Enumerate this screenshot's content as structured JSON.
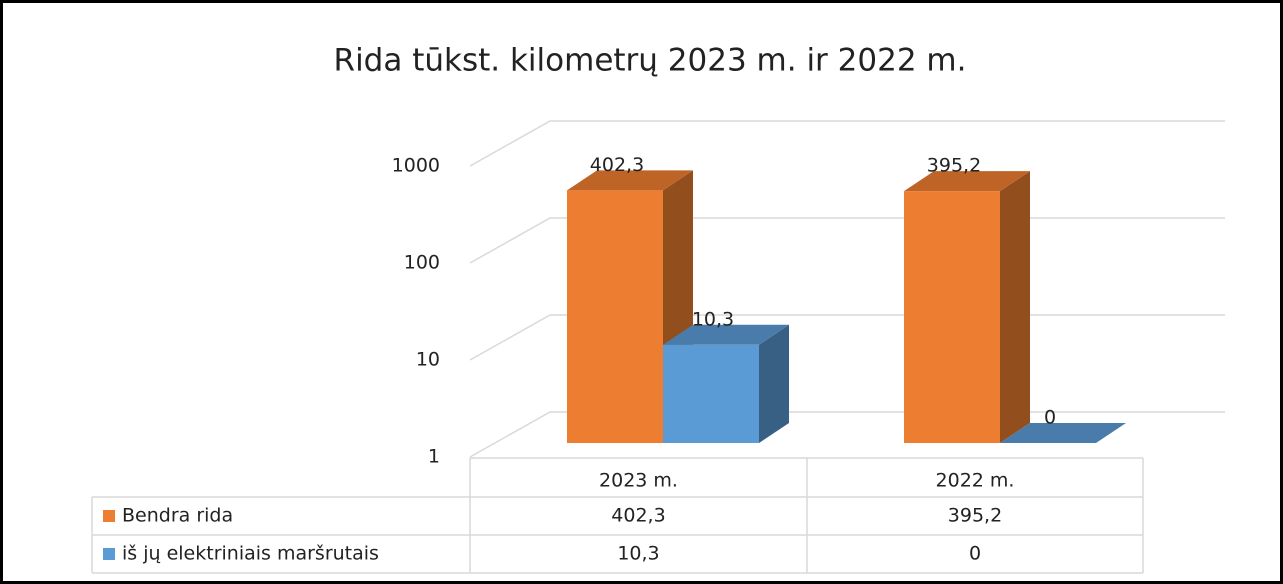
{
  "chart_data": {
    "type": "bar3d",
    "title": "Rida tūkst. kilometrų 2023 m. ir 2022 m.",
    "categories": [
      "2023 m.",
      "2022 m."
    ],
    "series": [
      {
        "name": "Bendra rida",
        "color": "#ed7d31",
        "values": [
          402.3,
          395.2
        ],
        "value_labels": [
          "402,3",
          "395,2"
        ]
      },
      {
        "name": "iš jų elektriniais maršrutais",
        "color": "#5b9bd5",
        "values": [
          10.3,
          0
        ],
        "value_labels": [
          "10,3",
          "0"
        ]
      }
    ],
    "ylim": [
      1,
      1000
    ],
    "yticks": [
      1,
      10,
      100,
      1000
    ],
    "log_scale": true,
    "grid": true,
    "data_table": true
  }
}
